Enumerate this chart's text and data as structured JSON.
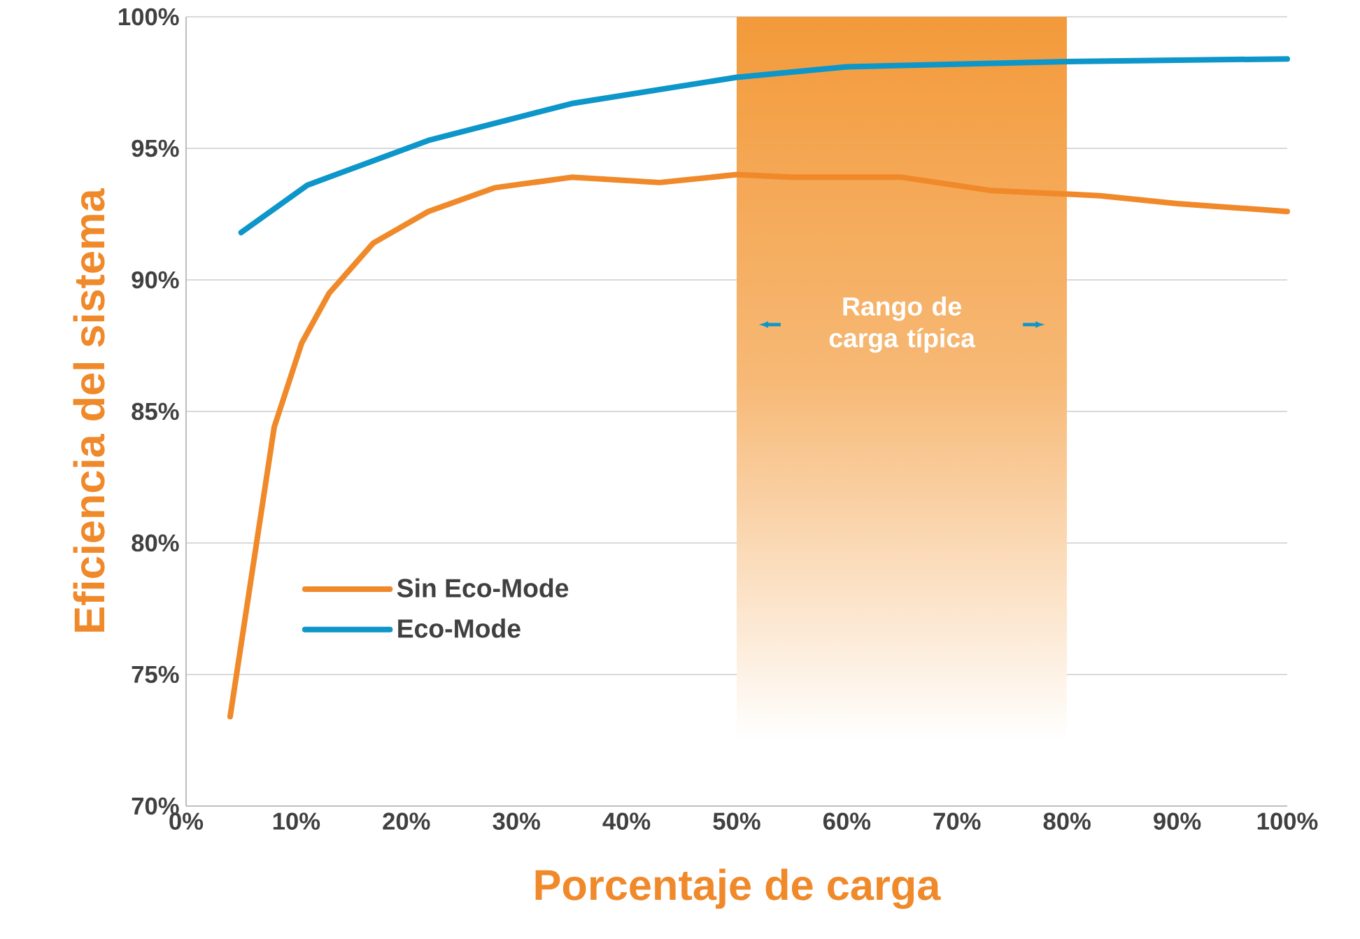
{
  "chart_data": {
    "type": "line",
    "xlabel": "Porcentaje de carga",
    "ylabel": "Eficiencia del sistema",
    "xlim": [
      0,
      100
    ],
    "xticks": [
      {
        "value": 0,
        "label": "0%"
      },
      {
        "value": 10,
        "label": "10%"
      },
      {
        "value": 20,
        "label": "20%"
      },
      {
        "value": 30,
        "label": "30%"
      },
      {
        "value": 40,
        "label": "40%"
      },
      {
        "value": 50,
        "label": "50%"
      },
      {
        "value": 60,
        "label": "60%"
      },
      {
        "value": 70,
        "label": "70%"
      },
      {
        "value": 80,
        "label": "80%"
      },
      {
        "value": 90,
        "label": "90%"
      },
      {
        "value": 100,
        "label": "100%"
      }
    ],
    "ylim": [
      70,
      100
    ],
    "yticks": [
      {
        "value": 70,
        "label": "70%"
      },
      {
        "value": 75,
        "label": "75%"
      },
      {
        "value": 80,
        "label": "80%"
      },
      {
        "value": 85,
        "label": "85%"
      },
      {
        "value": 90,
        "label": "90%"
      },
      {
        "value": 95,
        "label": "95%"
      },
      {
        "value": 100,
        "label": "100%"
      }
    ],
    "series": [
      {
        "name": "Sin Eco-Mode",
        "color": "#f0892a",
        "x": [
          4,
          8,
          10.5,
          13,
          17,
          22,
          28,
          35,
          43,
          50,
          55,
          65,
          73,
          83,
          90,
          100
        ],
        "values": [
          73.4,
          84.4,
          87.6,
          89.5,
          91.4,
          92.6,
          93.5,
          93.9,
          93.7,
          94.0,
          93.9,
          93.9,
          93.4,
          93.2,
          92.9,
          92.6
        ]
      },
      {
        "name": "Eco-Mode",
        "color": "#0d96c9",
        "x": [
          5,
          11,
          22,
          35,
          50,
          60,
          80,
          100
        ],
        "values": [
          91.8,
          93.6,
          95.3,
          96.7,
          97.7,
          98.1,
          98.3,
          98.4
        ]
      }
    ],
    "bands": [
      {
        "axis": "x",
        "from": 50,
        "to": 80,
        "label": "Rango de carga típica",
        "color": "#f39a3a"
      }
    ],
    "grid": "y",
    "legend": "bottom left",
    "marker": "none",
    "line_style": "solid"
  }
}
